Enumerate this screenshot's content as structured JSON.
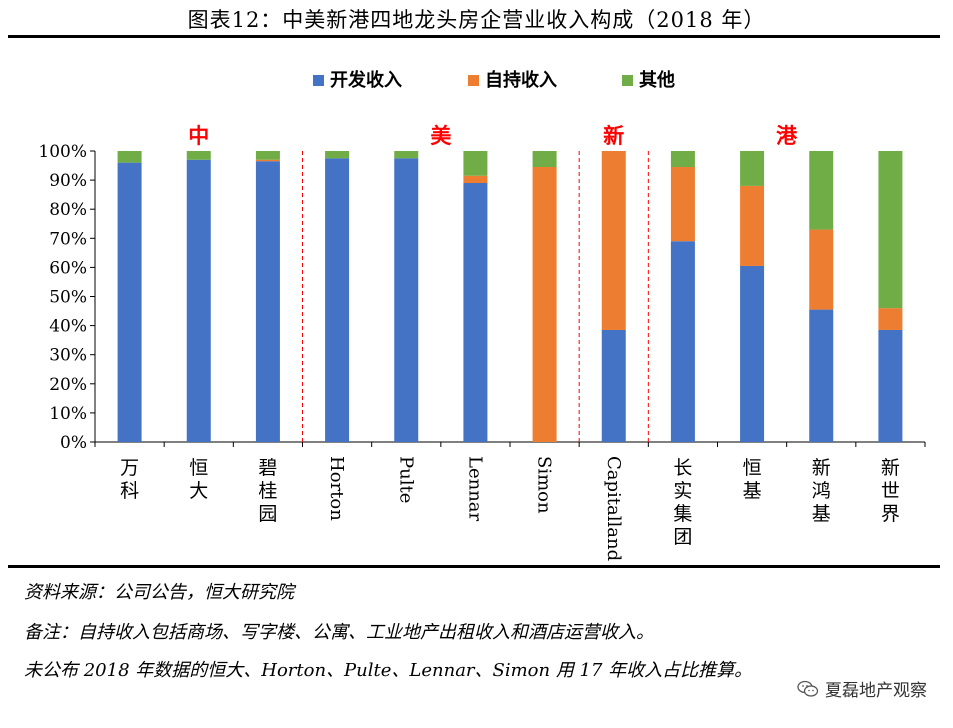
{
  "title": "图表12：中美新港四地龙头房企营业收入构成（2018 年）",
  "notes": [
    "资料来源：公司公告，恒大研究院",
    "备注：自持收入包括商场、写字楼、公寓、工业地产出租收入和酒店运营收入。",
    "未公布 2018 年数据的恒大、Horton、Pulte、Lennar、Simon 用 17 年收入占比推算。"
  ],
  "watermark": "夏磊地产观察",
  "colors": {
    "dev": "#4472C4",
    "hold": "#ED7D31",
    "other": "#70AD47",
    "region": "#FF0000"
  },
  "chart_data": {
    "type": "bar",
    "stacked": true,
    "categories": [
      "万科",
      "恒大",
      "碧桂园",
      "Horton",
      "Pulte",
      "Lennar",
      "Simon",
      "Capitalland",
      "长实集团",
      "恒基",
      "新鸿基",
      "新世界"
    ],
    "series": [
      {
        "name": "开发收入",
        "values": [
          96,
          97,
          96.5,
          97.5,
          97.5,
          89,
          0,
          38.5,
          69,
          60.5,
          45.5,
          38.5
        ]
      },
      {
        "name": "自持收入",
        "values": [
          0,
          0,
          0.5,
          0,
          0,
          2.5,
          94.5,
          61.5,
          25.5,
          27.5,
          27.5,
          7.5
        ]
      },
      {
        "name": "其他",
        "values": [
          4,
          3,
          3,
          2.5,
          2.5,
          8.5,
          5.5,
          0,
          5.5,
          12,
          27,
          54
        ]
      }
    ],
    "ylim": [
      0,
      100
    ],
    "yticks": [
      "0%",
      "10%",
      "20%",
      "30%",
      "40%",
      "50%",
      "60%",
      "70%",
      "80%",
      "90%",
      "100%"
    ],
    "legend_position": "top",
    "regions": [
      {
        "label": "中",
        "start": 0,
        "end": 2
      },
      {
        "label": "美",
        "start": 3,
        "end": 6
      },
      {
        "label": "新",
        "start": 7,
        "end": 7
      },
      {
        "label": "港",
        "start": 8,
        "end": 11
      }
    ]
  }
}
